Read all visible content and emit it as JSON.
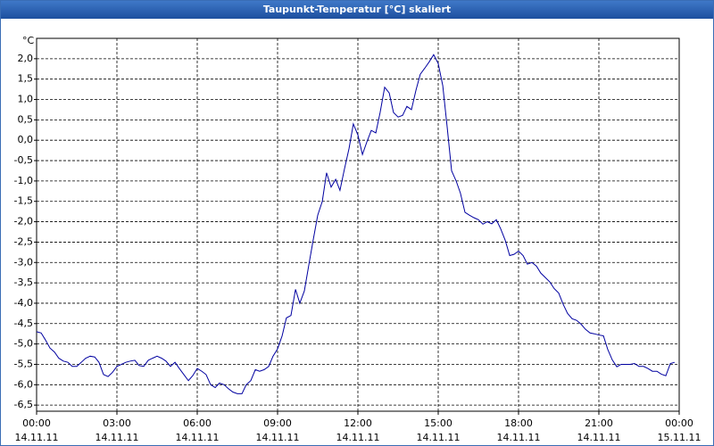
{
  "chart_data": {
    "type": "line",
    "title": "Taupunkt-Temperatur [°C] skaliert",
    "y_unit": "°C",
    "color": "#0000a0",
    "grid": true,
    "xlim": [
      0,
      24
    ],
    "ylim": [
      -6.65,
      2.5
    ],
    "xticks": [
      {
        "value": 0,
        "label": "00:00"
      },
      {
        "value": 3,
        "label": "03:00"
      },
      {
        "value": 6,
        "label": "06:00"
      },
      {
        "value": 9,
        "label": "09:00"
      },
      {
        "value": 12,
        "label": "12:00"
      },
      {
        "value": 15,
        "label": "15:00"
      },
      {
        "value": 18,
        "label": "18:00"
      },
      {
        "value": 21,
        "label": "21:00"
      },
      {
        "value": 24,
        "label": "00:00"
      }
    ],
    "xtick_dates": [
      "14.11.11",
      "14.11.11",
      "14.11.11",
      "14.11.11",
      "14.11.11",
      "14.11.11",
      "14.11.11",
      "14.11.11",
      "15.11.11"
    ],
    "yticks": [
      {
        "value": 2.0,
        "label": "2,0"
      },
      {
        "value": 1.5,
        "label": "1,5"
      },
      {
        "value": 1.0,
        "label": "1,0"
      },
      {
        "value": 0.5,
        "label": "0,5"
      },
      {
        "value": 0.0,
        "label": "0,0"
      },
      {
        "value": -0.5,
        "label": "-0,5"
      },
      {
        "value": -1.0,
        "label": "-1,0"
      },
      {
        "value": -1.5,
        "label": "-1,5"
      },
      {
        "value": -2.0,
        "label": "-2,0"
      },
      {
        "value": -2.5,
        "label": "-2,5"
      },
      {
        "value": -3.0,
        "label": "-3,0"
      },
      {
        "value": -3.5,
        "label": "-3,5"
      },
      {
        "value": -4.0,
        "label": "-4,0"
      },
      {
        "value": -4.5,
        "label": "-4,5"
      },
      {
        "value": -5.0,
        "label": "-5,0"
      },
      {
        "value": -5.5,
        "label": "-5,5"
      },
      {
        "value": -6.0,
        "label": "-6,0"
      },
      {
        "value": -6.5,
        "label": "-6,5"
      }
    ],
    "x": [
      0,
      0.17,
      0.33,
      0.5,
      0.67,
      0.83,
      1,
      1.17,
      1.33,
      1.5,
      1.67,
      1.83,
      2,
      2.17,
      2.33,
      2.5,
      2.67,
      2.83,
      3,
      3.17,
      3.33,
      3.5,
      3.67,
      3.83,
      4,
      4.17,
      4.33,
      4.5,
      4.67,
      4.83,
      5,
      5.17,
      5.33,
      5.5,
      5.67,
      5.83,
      6,
      6.17,
      6.33,
      6.5,
      6.67,
      6.83,
      7,
      7.17,
      7.33,
      7.5,
      7.67,
      7.83,
      8,
      8.17,
      8.33,
      8.5,
      8.67,
      8.83,
      9,
      9.17,
      9.33,
      9.5,
      9.67,
      9.83,
      10,
      10.17,
      10.33,
      10.5,
      10.67,
      10.83,
      11,
      11.17,
      11.33,
      11.5,
      11.67,
      11.83,
      12,
      12.17,
      12.33,
      12.5,
      12.67,
      12.83,
      13,
      13.17,
      13.33,
      13.5,
      13.67,
      13.83,
      14,
      14.17,
      14.33,
      14.5,
      14.67,
      14.83,
      15,
      15.17,
      15.33,
      15.5,
      15.67,
      15.83,
      16,
      16.17,
      16.33,
      16.5,
      16.67,
      16.83,
      17,
      17.17,
      17.33,
      17.5,
      17.67,
      17.83,
      18,
      18.17,
      18.33,
      18.5,
      18.67,
      18.83,
      19,
      19.17,
      19.33,
      19.5,
      19.67,
      19.83,
      20,
      20.17,
      20.33,
      20.5,
      20.67,
      20.83,
      21,
      21.17,
      21.33,
      21.5,
      21.67,
      21.83,
      22,
      22.17,
      22.33,
      22.5,
      22.67,
      22.83,
      23,
      23.17,
      23.33,
      23.5,
      23.67,
      23.83
    ],
    "values": [
      -4.7,
      -4.73,
      -4.9,
      -5.1,
      -5.2,
      -5.35,
      -5.42,
      -5.45,
      -5.55,
      -5.55,
      -5.45,
      -5.35,
      -5.3,
      -5.32,
      -5.45,
      -5.75,
      -5.8,
      -5.7,
      -5.55,
      -5.5,
      -5.45,
      -5.42,
      -5.4,
      -5.53,
      -5.55,
      -5.4,
      -5.35,
      -5.3,
      -5.35,
      -5.42,
      -5.55,
      -5.45,
      -5.6,
      -5.75,
      -5.9,
      -5.78,
      -5.6,
      -5.67,
      -5.75,
      -6.0,
      -6.07,
      -5.96,
      -6.0,
      -6.1,
      -6.18,
      -6.22,
      -6.22,
      -6.0,
      -5.9,
      -5.63,
      -5.67,
      -5.63,
      -5.55,
      -5.3,
      -5.12,
      -4.8,
      -4.36,
      -4.3,
      -3.66,
      -4.0,
      -3.7,
      -3.05,
      -2.45,
      -1.84,
      -1.5,
      -0.8,
      -1.15,
      -0.96,
      -1.23,
      -0.7,
      -0.2,
      0.4,
      0.13,
      -0.35,
      -0.05,
      0.24,
      0.18,
      0.68,
      1.3,
      1.16,
      0.68,
      0.57,
      0.61,
      0.83,
      0.75,
      1.23,
      1.62,
      1.77,
      1.93,
      2.1,
      1.88,
      1.34,
      0.35,
      -0.75,
      -1.0,
      -1.3,
      -1.77,
      -1.84,
      -1.9,
      -1.95,
      -2.06,
      -2.0,
      -2.05,
      -1.95,
      -2.17,
      -2.45,
      -2.83,
      -2.8,
      -2.72,
      -2.83,
      -3.04,
      -3.0,
      -3.09,
      -3.26,
      -3.37,
      -3.48,
      -3.64,
      -3.75,
      -4.03,
      -4.25,
      -4.38,
      -4.42,
      -4.51,
      -4.64,
      -4.73,
      -4.75,
      -4.78,
      -4.8,
      -5.13,
      -5.39,
      -5.56,
      -5.5,
      -5.5,
      -5.5,
      -5.48,
      -5.55,
      -5.55,
      -5.6,
      -5.67,
      -5.67,
      -5.74,
      -5.78,
      -5.48,
      -5.45
    ]
  }
}
